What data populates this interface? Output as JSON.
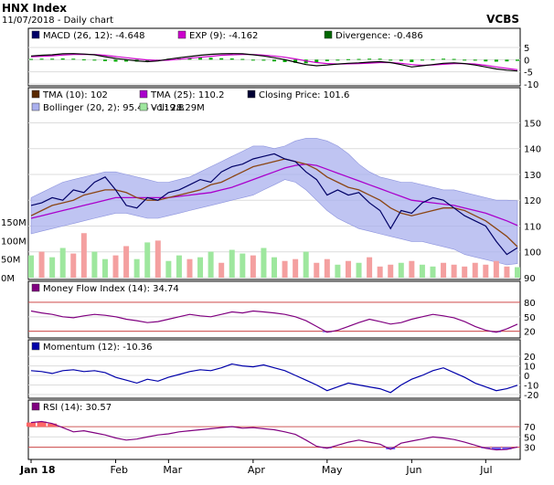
{
  "header": {
    "title": "HNX Index",
    "subtitle": "11/07/2018 - Daily chart",
    "brand": "VCBS"
  },
  "colors": {
    "panel_bg": "#ffffff",
    "grid": "#dcdcdc",
    "border": "#000000",
    "macd": "#000000",
    "exp": "#cc00cc",
    "divergence": "#00aa00",
    "tma10": "#8b4513",
    "tma25": "#aa00cc",
    "close": "#000066",
    "bollinger": "#aab0ee",
    "vol_up": "#9ee79e",
    "vol_down": "#f4a0a0",
    "mfi": "#800080",
    "momentum": "#0000aa",
    "rsi": "#800080",
    "overbought_fill": "#ff6666",
    "oversold_fill": "#6666ff",
    "level_line": "#cc3333"
  },
  "chart_data": [
    {
      "type": "line",
      "id": "macd",
      "legend": [
        {
          "label": "MACD (26, 12): -4.648",
          "color": "#000066"
        },
        {
          "label": "EXP (9): -4.162",
          "color": "#cc00cc"
        },
        {
          "label": "Divergence: -0.486",
          "color": "#006600"
        }
      ],
      "ylim": [
        -10,
        8
      ],
      "yticks": [
        5,
        0,
        -5,
        -10
      ],
      "series": [
        {
          "name": "MACD",
          "values": [
            1.5,
            1.8,
            2.0,
            2.4,
            2.5,
            2.3,
            2.0,
            1.2,
            0.5,
            0.0,
            -0.5,
            -0.8,
            -0.5,
            0.2,
            0.8,
            1.3,
            1.8,
            2.2,
            2.4,
            2.5,
            2.4,
            2.0,
            1.5,
            0.8,
            0.0,
            -1.0,
            -2.0,
            -2.5,
            -2.2,
            -1.8,
            -1.5,
            -1.3,
            -1.0,
            -0.8,
            -1.2,
            -2.0,
            -3.0,
            -2.5,
            -2.0,
            -1.5,
            -1.3,
            -1.6,
            -2.2,
            -3.0,
            -3.8,
            -4.3,
            -4.648
          ]
        },
        {
          "name": "EXP",
          "values": [
            1.2,
            1.4,
            1.6,
            1.9,
            2.1,
            2.2,
            2.1,
            1.8,
            1.3,
            0.8,
            0.3,
            -0.1,
            -0.3,
            -0.2,
            0.2,
            0.6,
            1.0,
            1.4,
            1.8,
            2.0,
            2.1,
            2.1,
            1.9,
            1.5,
            1.0,
            0.3,
            -0.5,
            -1.2,
            -1.6,
            -1.8,
            -1.7,
            -1.6,
            -1.4,
            -1.2,
            -1.2,
            -1.5,
            -2.0,
            -2.3,
            -2.2,
            -1.9,
            -1.6,
            -1.6,
            -1.8,
            -2.3,
            -3.0,
            -3.6,
            -4.162
          ]
        }
      ]
    },
    {
      "type": "line",
      "id": "price",
      "legend": [
        {
          "label": "TMA (10): 102",
          "color": "#5a2a00"
        },
        {
          "label": "TMA (25): 110.2",
          "color": "#aa00cc"
        },
        {
          "label": "Closing Price: 101.6",
          "color": "#000033"
        },
        {
          "label": "Bollinger (20, 2): 95.44 - 119.8",
          "color": "#aab0ee"
        },
        {
          "label": "Vol: 28.29M",
          "color": "#9ee79e"
        }
      ],
      "ylim": [
        90,
        153
      ],
      "yticks": [
        150,
        140,
        130,
        120,
        110,
        100,
        90
      ],
      "vol_axis": {
        "labels": [
          "150M",
          "100M",
          "50M",
          "0M"
        ],
        "values": [
          150,
          100,
          50,
          0
        ],
        "max": 160
      },
      "close": [
        118,
        119,
        121,
        120,
        124,
        123,
        127,
        129,
        124,
        118,
        117,
        121,
        120,
        123,
        124,
        126,
        128,
        127,
        131,
        133,
        134,
        136,
        137,
        138,
        136,
        135,
        131,
        128,
        122,
        124,
        122,
        123,
        119,
        116,
        109,
        116,
        115,
        119,
        121,
        120,
        117,
        114,
        112,
        110,
        104,
        99,
        101.6
      ],
      "tma10": [
        114,
        116,
        118,
        119,
        120,
        122,
        123,
        124,
        124,
        123,
        121,
        120,
        120,
        121,
        122,
        123,
        124,
        126,
        127,
        129,
        131,
        133,
        134,
        135,
        136,
        135,
        134,
        132,
        129,
        127,
        125,
        124,
        122,
        120,
        117,
        115,
        114,
        115,
        116,
        117,
        117,
        116,
        114,
        112,
        109,
        106,
        102
      ],
      "tma25": [
        113,
        114,
        115,
        116,
        117,
        118,
        119,
        120,
        121,
        121,
        121,
        121,
        121,
        121,
        121.5,
        122,
        122.5,
        123,
        124,
        125,
        126.5,
        128,
        129.5,
        131,
        132.5,
        133.5,
        134,
        133.5,
        132,
        130.5,
        129,
        127.5,
        126,
        124.5,
        123,
        121.5,
        120,
        119.5,
        119,
        118.5,
        118,
        117,
        116,
        115,
        113.5,
        112,
        110.2
      ],
      "bb_upper": [
        121,
        123,
        125,
        127,
        128,
        129,
        130,
        131,
        131,
        130,
        129,
        128,
        127,
        127,
        128,
        129,
        131,
        133,
        135,
        137,
        139,
        141,
        141,
        140,
        141,
        143,
        144,
        144,
        143,
        141,
        138,
        134,
        131,
        129,
        128,
        127,
        127,
        126,
        125,
        124,
        124,
        123,
        122,
        121,
        120,
        120,
        119.8
      ],
      "bb_lower": [
        107,
        108,
        109,
        110,
        111,
        112,
        113,
        114,
        115,
        115,
        114,
        113,
        113,
        114,
        115,
        116,
        117,
        118,
        119,
        120,
        121,
        122,
        124,
        126,
        128,
        127,
        124,
        120,
        116,
        113,
        111,
        109,
        108,
        107,
        106,
        105,
        104,
        104,
        103,
        102,
        101,
        99,
        98,
        97,
        96,
        95,
        95.44
      ],
      "volume": [
        60,
        70,
        55,
        80,
        65,
        120,
        70,
        50,
        60,
        85,
        50,
        95,
        100,
        45,
        60,
        50,
        55,
        70,
        40,
        75,
        65,
        60,
        80,
        55,
        45,
        50,
        70,
        40,
        50,
        35,
        45,
        40,
        55,
        30,
        35,
        40,
        45,
        35,
        30,
        40,
        35,
        30,
        40,
        35,
        45,
        30,
        28.29
      ],
      "volume_up": [
        true,
        false,
        true,
        true,
        false,
        false,
        true,
        true,
        false,
        false,
        true,
        true,
        false,
        true,
        true,
        false,
        true,
        true,
        false,
        true,
        true,
        false,
        true,
        true,
        false,
        false,
        true,
        false,
        false,
        true,
        false,
        true,
        false,
        false,
        false,
        true,
        false,
        true,
        true,
        false,
        false,
        false,
        false,
        false,
        false,
        false,
        true
      ]
    },
    {
      "type": "line",
      "id": "mfi",
      "legend": [
        {
          "label": "Money Flow Index (14): 34.74",
          "color": "#800080"
        }
      ],
      "ylim": [
        10,
        95
      ],
      "yticks": [
        80,
        50,
        20
      ],
      "levels": [
        80,
        20
      ],
      "values": [
        62,
        58,
        55,
        50,
        48,
        52,
        55,
        53,
        50,
        45,
        42,
        38,
        40,
        45,
        50,
        55,
        52,
        50,
        55,
        60,
        58,
        62,
        60,
        58,
        55,
        50,
        42,
        30,
        18,
        22,
        30,
        38,
        45,
        40,
        35,
        38,
        45,
        50,
        55,
        52,
        48,
        40,
        30,
        22,
        18,
        25,
        34.74
      ]
    },
    {
      "type": "line",
      "id": "momentum",
      "legend": [
        {
          "label": "Momentum (12): -10.36",
          "color": "#0000aa"
        }
      ],
      "ylim": [
        -22,
        23
      ],
      "yticks": [
        20,
        10,
        0,
        -10,
        -20
      ],
      "values": [
        5,
        4,
        2,
        5,
        6,
        4,
        5,
        3,
        -2,
        -5,
        -8,
        -4,
        -6,
        -2,
        1,
        4,
        6,
        5,
        8,
        12,
        10,
        9,
        11,
        8,
        5,
        0,
        -5,
        -10,
        -16,
        -12,
        -8,
        -10,
        -12,
        -14,
        -18,
        -10,
        -4,
        0,
        5,
        8,
        3,
        -2,
        -8,
        -12,
        -16,
        -14,
        -10.36
      ]
    },
    {
      "type": "line",
      "id": "rsi",
      "legend": [
        {
          "label": "RSI (14): 30.57",
          "color": "#800080"
        }
      ],
      "ylim": [
        10,
        95
      ],
      "yticks": [
        70,
        50,
        30
      ],
      "levels": [
        70,
        30
      ],
      "values": [
        78,
        80,
        76,
        68,
        60,
        62,
        58,
        54,
        48,
        44,
        46,
        50,
        54,
        56,
        60,
        62,
        64,
        66,
        68,
        70,
        67,
        68,
        66,
        64,
        60,
        55,
        44,
        32,
        28,
        34,
        40,
        44,
        40,
        36,
        26,
        38,
        42,
        46,
        50,
        48,
        45,
        40,
        34,
        28,
        25,
        26,
        30.57
      ],
      "xlabels": [
        "Jan 18",
        "Feb",
        "Mar",
        "Apr",
        "May",
        "Jun",
        "Jul"
      ],
      "xlabel_index": [
        0,
        8,
        13,
        21,
        28,
        36,
        43
      ]
    }
  ]
}
